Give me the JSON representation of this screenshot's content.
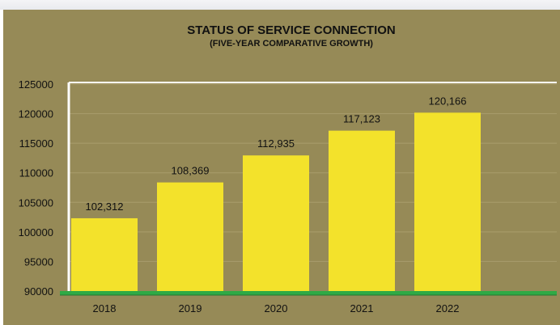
{
  "chart_data": {
    "type": "bar",
    "title": "STATUS OF SERVICE CONNECTION",
    "subtitle": "(FIVE-YEAR COMPARATIVE GROWTH)",
    "categories": [
      "2018",
      "2019",
      "2020",
      "2021",
      "2022"
    ],
    "values": [
      102312,
      108369,
      112935,
      117123,
      120166
    ],
    "data_labels": [
      "102,312",
      "108,369",
      "112,935",
      "117,123",
      "120,166"
    ],
    "y_ticks": [
      "90000",
      "95000",
      "100000",
      "105000",
      "110000",
      "115000",
      "120000",
      "125000"
    ],
    "ylim": [
      90000,
      125000
    ],
    "grid": true,
    "colors": {
      "background": "#968a57",
      "bar": "#f3e22b",
      "gridline": "#a99d6c",
      "floor": "#2faa45"
    }
  }
}
